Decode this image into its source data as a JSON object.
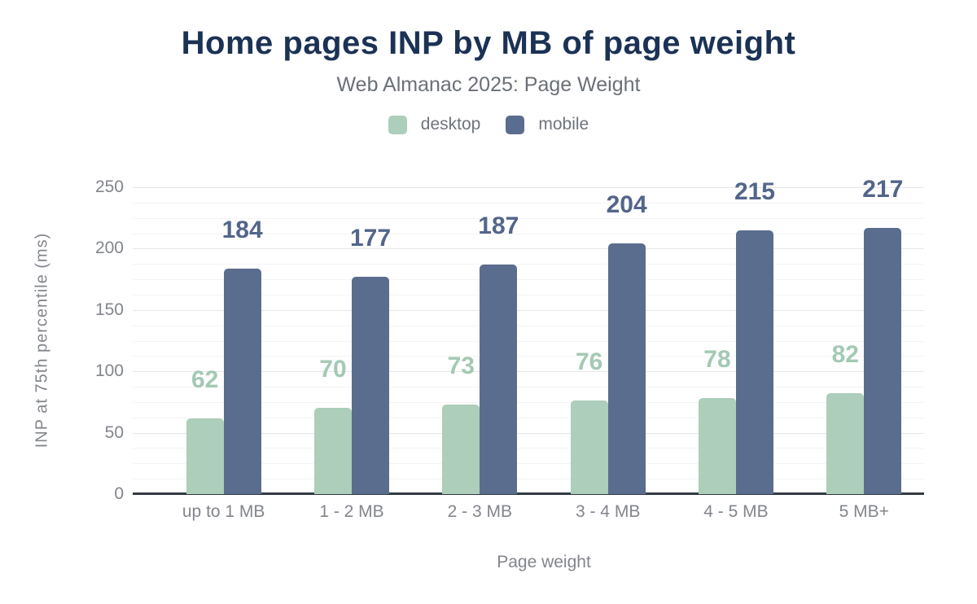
{
  "title": "Home pages INP by MB of page weight",
  "subtitle": "Web Almanac 2025: Page Weight",
  "legend": {
    "items": [
      {
        "label": "desktop",
        "color": "#acceba"
      },
      {
        "label": "mobile",
        "color": "#5b6d8f"
      }
    ]
  },
  "colors": {
    "title": "#1b3255",
    "subtitle": "#6b7077",
    "axis_text": "#82858b",
    "axis_line": "#333a44",
    "gridline_major": "#e7e7e7",
    "gridline_minor": "#f4f4f4",
    "desktop_bar": "#acceba",
    "desktop_value_label": "#a3c9b3",
    "mobile_bar": "#5b6d8f",
    "mobile_value_label": "#53658a"
  },
  "chart_data": {
    "type": "bar",
    "title": "Home pages INP by MB of page weight",
    "subtitle": "Web Almanac 2025: Page Weight",
    "categories": [
      "up to 1 MB",
      "1 - 2 MB",
      "2 - 3 MB",
      "3 - 4 MB",
      "4 - 5 MB",
      "5 MB+"
    ],
    "series": [
      {
        "name": "desktop",
        "color": "#acceba",
        "label_color": "#a3c9b3",
        "values": [
          62,
          70,
          73,
          76,
          78,
          82
        ]
      },
      {
        "name": "mobile",
        "color": "#5b6d8f",
        "label_color": "#53658a",
        "values": [
          184,
          177,
          187,
          204,
          215,
          217
        ]
      }
    ],
    "xlabel": "Page weight",
    "ylabel": "INP at 75th percentile (ms)",
    "ylim": [
      0,
      250
    ],
    "ytick_step": 50,
    "yminor_step": 12.5,
    "grid": true,
    "legend_position": "top",
    "value_labels": true
  }
}
